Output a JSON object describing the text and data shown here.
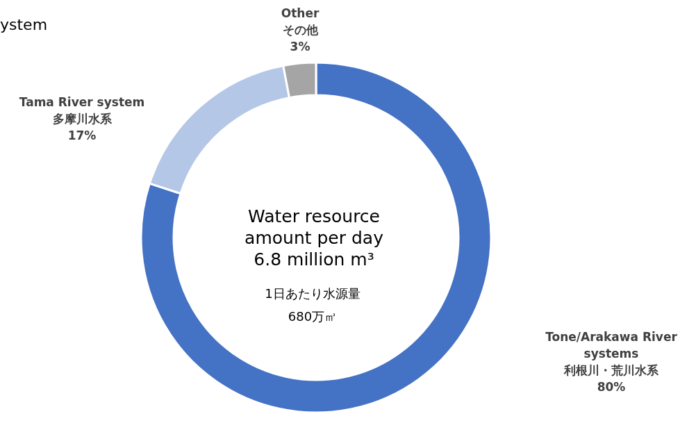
{
  "chart_data": {
    "type": "donut",
    "title": "ystem",
    "categories": [
      "Tone/Arakawa River\nsystems\n利根川・荒川水系",
      "Tama River system\n多摩川水系",
      "Other\nその他"
    ],
    "values": [
      80,
      17,
      3
    ],
    "value_labels": [
      "80%",
      "17%",
      "3%"
    ],
    "colors": [
      "#4472c4",
      "#b4c7e7",
      "#a5a5a5"
    ],
    "annotations": [
      "Water resource\namount per day\n6.8 million m³",
      "1日あたり水源量\n680万㎥"
    ]
  }
}
